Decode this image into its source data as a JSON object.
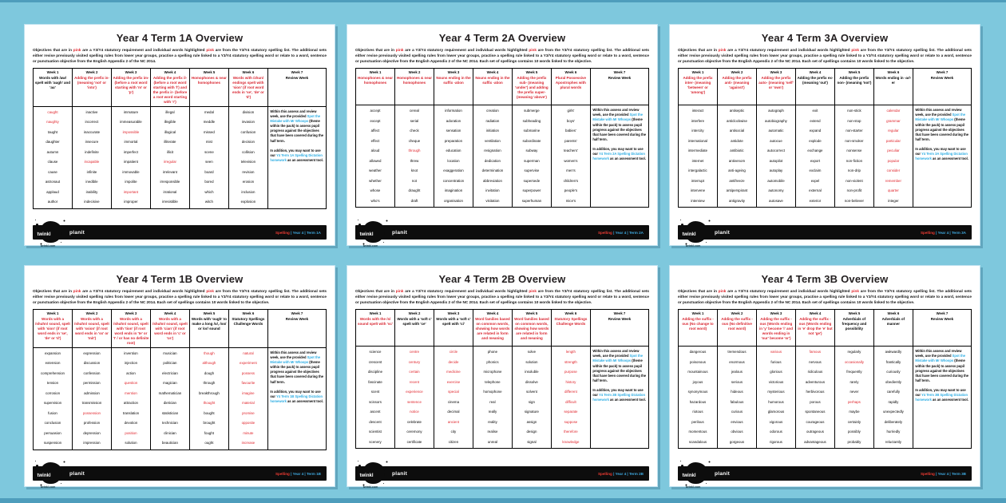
{
  "page": {
    "background": "#7ec8dd",
    "accent_red": "#d8232e",
    "link_blue": "#29abe2"
  },
  "common": {
    "intro_segments": [
      "Objectives that are in ",
      "pink",
      " are a Y3/Y4 statutory requirement and individual words highlighted ",
      "pink",
      " are from the Y3/Y4 statutory spelling list. The additional sets either revise previously visited spelling rules from lower year groups, practise a spelling rule linked to a Y3/Y4 statutory spelling word or relate to a word, sentence or punctuation objective from the English Appendix 2 of the NC 2014."
    ],
    "intro_extra": "Each set of spellings contains 10 words linked to the objective.",
    "review": {
      "p1_pre": "Within this assess and review week, use the provided ",
      "p1_link": "Spot the Mistake with Mr Whoops",
      "p1_post": " (theme within the pack) to assess pupil progress against the objectives that have been covered during the half term.",
      "p2_pre": "In addition, you may want to use our ",
      "p2_post": " as an assessment tool."
    },
    "footer_brand": "twinkl",
    "footer_site": "twinkl.com",
    "footer_product": "planit"
  },
  "cards": [
    {
      "title": "Year 4 Term 1A Overview",
      "intro_extra": false,
      "review_link": "Y4 Term 1A Spelling Dictation homework",
      "footer": {
        "subject": "Spelling",
        "rest": " | Year 4 | Term 1A"
      },
      "weeks": [
        {
          "week": "Week 1",
          "label": "Words with /aw/ spelt with 'augh' and 'au'",
          "style": "black",
          "words": [
            "*caught",
            "*naughty",
            "taught",
            "daughter",
            "autumn",
            "clause",
            "cause",
            "astronaut",
            "applaud",
            "author"
          ]
        },
        {
          "week": "Week 2",
          "label": "Adding the prefix in- (meaning 'not' or 'into')",
          "style": "red",
          "words": [
            "inactive",
            "incorrect",
            "inaccurate",
            "insecure",
            "indefinite",
            "*incapable",
            "infinite",
            "inedible",
            "inability",
            "indecisive"
          ]
        },
        {
          "week": "Week 3",
          "label": "Adding the prefix im- (before a root word starting with 'm' or 'p')",
          "style": "red",
          "words": [
            "immature",
            "immeasurable",
            "*impossible",
            "immortal",
            "imperfect",
            "impatient",
            "immovable",
            "impolite",
            "*important",
            "improper"
          ]
        },
        {
          "week": "Week 4",
          "label": "Adding the prefix il- (before a root word starting with 'l') and the prefix ir- (before a root word starting with 'r')",
          "style": "red",
          "words": [
            "illegal",
            "illegible",
            "illogical",
            "illiterate",
            "illicit",
            "*irregular",
            "irrelevant",
            "irresponsible",
            "irrational",
            "irresistible"
          ]
        },
        {
          "week": "Week 5",
          "label": "Homophones & near homophones",
          "style": "red",
          "words": [
            "medal",
            "meddle",
            "missed",
            "mist",
            "scene",
            "seen",
            "board",
            "bored",
            "which",
            "witch"
          ]
        },
        {
          "week": "Week 6",
          "label": "Words with /zhun/ endings spelt with 'sion' (if root word ends in 'se', 'de' or 'd')",
          "style": "red",
          "words": [
            "division",
            "invasion",
            "confusion",
            "decision",
            "collision",
            "television",
            "revision",
            "erosion",
            "inclusion",
            "explosion"
          ]
        },
        {
          "week": "Week 7",
          "label": "Review Week",
          "style": "black",
          "review": true
        }
      ]
    },
    {
      "title": "Year 4 Term 2A Overview",
      "intro_extra": true,
      "review_link": "Y4 Term 2A Spelling Dictation homework",
      "footer": {
        "subject": "Spelling",
        "rest": " | Year 4 | Term 2A"
      },
      "weeks": [
        {
          "week": "Week 1",
          "label": "Homophones & near homophones",
          "style": "red",
          "words": [
            "accept",
            "except",
            "affect",
            "effect",
            "aloud",
            "allowed",
            "weather",
            "whether",
            "whose",
            "who's"
          ]
        },
        {
          "week": "Week 2",
          "label": "Homophones & near homophones",
          "style": "red",
          "words": [
            "cereal",
            "serial",
            "check",
            "cheque",
            "*through",
            "threw",
            "knot",
            "not",
            "draught",
            "draft"
          ]
        },
        {
          "week": "Week 3",
          "label": "Nouns ending in the suffix -ation",
          "style": "red",
          "words": [
            "information",
            "adoration",
            "sensation",
            "preparation",
            "education",
            "location",
            "exaggeration",
            "concentration",
            "imagination",
            "organisation"
          ]
        },
        {
          "week": "Week 4",
          "label": "Nouns ending in the suffix -ation",
          "style": "red",
          "words": [
            "creation",
            "radiation",
            "initiation",
            "ventilation",
            "resignation",
            "dedication",
            "determination",
            "abbreviation",
            "invitation",
            "visitation"
          ]
        },
        {
          "week": "Week 5",
          "label": "Adding the prefix sub- (meaning 'under') and adding the prefix super- (meaning 'above')",
          "style": "red",
          "words": [
            "submerge",
            "subheading",
            "submarine",
            "subordinate",
            "subway",
            "superman",
            "supervise",
            "supersede",
            "superpower",
            "superhuman"
          ]
        },
        {
          "week": "Week 6",
          "label": "Plural Possessive Apostrophes with plural words",
          "style": "red",
          "words": [
            "girls'",
            "boys'",
            "babies'",
            "parents'",
            "teachers'",
            "women's",
            "men's",
            "children's",
            "people's",
            "mice's"
          ]
        },
        {
          "week": "Week 7",
          "label": "Review Week",
          "style": "black",
          "review": true
        }
      ]
    },
    {
      "title": "Year 4 Term 3A Overview",
      "intro_extra": true,
      "review_link": "Y4 Term 3A Spelling Dictation homework",
      "footer": {
        "subject": "Spelling",
        "rest": " | Year 4 | Term 3A"
      },
      "weeks": [
        {
          "week": "Week 1",
          "label": "Adding the prefix inter- (meaning 'between' or 'among')",
          "style": "red",
          "words": [
            "interact",
            "interfere",
            "intercity",
            "international",
            "intermediate",
            "internet",
            "intergalactic",
            "interrupt",
            "intervene",
            "interview"
          ]
        },
        {
          "week": "Week 2",
          "label": "Adding the prefix anti- (meaning 'against')",
          "style": "red",
          "words": [
            "antiseptic",
            "anticlockwise",
            "antisocial",
            "antidote",
            "antibiotic",
            "antivenom",
            "anti-ageing",
            "antifreeze",
            "antiperspirant",
            "antigravity"
          ]
        },
        {
          "week": "Week 3",
          "label": "Adding the prefix auto- (meaning 'self' or 'own')",
          "style": "red",
          "words": [
            "autograph",
            "autobiography",
            "automatic",
            "autocue",
            "autocorrect",
            "autopilot",
            "autoplay",
            "automobile",
            "autonomy",
            "autosave"
          ]
        },
        {
          "week": "Week 4",
          "label": "Adding the prefix ex- (meaning 'out')",
          "style": "black",
          "words": [
            "exit",
            "extend",
            "expand",
            "explode",
            "exchange",
            "export",
            "exclaim",
            "expel",
            "external",
            "exterior"
          ]
        },
        {
          "week": "Week 5",
          "label": "Adding the prefix non- (meaning 'not')",
          "style": "black",
          "words": [
            "non-stick",
            "non-stop",
            "non-starter",
            "non-smoker",
            "nonsense",
            "non-fiction",
            "non-drip",
            "non-violent",
            "non-profit",
            "non-believer"
          ]
        },
        {
          "week": "Week 6",
          "label": "Words ending in -ar/-er",
          "style": "black",
          "words": [
            "*calendar",
            "*grammar",
            "*regular",
            "*particular",
            "*peculiar",
            "*popular",
            "*consider",
            "*remember",
            "*quarter",
            "integer"
          ]
        },
        {
          "week": "Week 7",
          "label": "Review Week",
          "style": "black",
          "review": true
        }
      ]
    },
    {
      "title": "Year 4 Term 1B Overview",
      "intro_extra": true,
      "review_link": "Y4 Term 1B Spelling Dictation homework",
      "footer": {
        "subject": "Spelling",
        "rest": " | Year 4 | Term 1B"
      },
      "weeks": [
        {
          "week": "Week 1",
          "label": "Words with a /shuhn/ sound, spelt with 'sion' (if root word ends in 'se', 'de' or 'd')",
          "style": "red",
          "words": [
            "expansion",
            "extension",
            "comprehension",
            "tension",
            "corrosion",
            "supervision",
            "fusion",
            "conclusion",
            "persuasion",
            "suspension"
          ]
        },
        {
          "week": "Week 2",
          "label": "Words with a /shuhn/ sound, spelt with 'ssion' (if root word ends in 'ss' or 'mit')",
          "style": "red",
          "words": [
            "expression",
            "discussion",
            "confession",
            "permission",
            "admission",
            "transmission",
            "*possession",
            "profession",
            "depression",
            "impression"
          ]
        },
        {
          "week": "Week 3",
          "label": "Words with a /shuhn/ sound, spelt with 'tion' (if root word ends in 'te' or 't' / or has no definite root)",
          "style": "red",
          "words": [
            "invention",
            "injection",
            "action",
            "*question",
            "*mention",
            "attraction",
            "translation",
            "devotion",
            "*position",
            "solution"
          ]
        },
        {
          "week": "Week 4",
          "label": "Words with a /shuhn/ sound, spelt with 'cian' (if root word ends in 'c' or 'cs')",
          "style": "red",
          "words": [
            "musician",
            "politician",
            "electrician",
            "magician",
            "mathematician",
            "dietician",
            "statistician",
            "technician",
            "clinician",
            "beautician"
          ]
        },
        {
          "week": "Week 5",
          "label": "Words with 'ough' to make a long /o/, /oo/ or /or/ sound",
          "style": "black",
          "words": [
            "*though",
            "*although",
            "dough",
            "through",
            "breakthrough",
            "*thought",
            "bought",
            "brought",
            "fought",
            "ought"
          ]
        },
        {
          "week": "Week 6",
          "label": "Statutory Spellings Challenge Words",
          "style": "black",
          "words": [
            "*natural",
            "*experiment",
            "*possess",
            "*favourite",
            "*imagine",
            "*material",
            "*promise",
            "*opposite",
            "*minute",
            "*increase"
          ]
        },
        {
          "week": "Week 7",
          "label": "Review Week",
          "style": "black",
          "review": true
        }
      ]
    },
    {
      "title": "Year 4 Term 2B Overview",
      "intro_extra": true,
      "review_link": "Y4 Term 2B Spelling Dictation homework",
      "footer": {
        "subject": "Spelling",
        "rest": " | Year 4 | Term 2B"
      },
      "weeks": [
        {
          "week": "Week 1",
          "label": "Words with the /s/ sound spelt with 'sc'",
          "style": "red",
          "words": [
            "science",
            "crescent",
            "discipline",
            "fascinate",
            "scent",
            "scissors",
            "ascent",
            "descent",
            "scientist",
            "scenery"
          ]
        },
        {
          "week": "Week 2",
          "label": "Words with a 'soft c' spelt with 'ce'",
          "style": "black",
          "words": [
            "*centre",
            "*century",
            "*certain",
            "*recent",
            "*experience",
            "*sentence",
            "*notice",
            "celebrate",
            "ceremony",
            "certificate"
          ]
        },
        {
          "week": "Week 3",
          "label": "Words with a 'soft c' spelt with 'ci'",
          "style": "black",
          "words": [
            "*circle",
            "*decide",
            "*medicine",
            "*exercise",
            "*special",
            "cinema",
            "decimal",
            "*ancient",
            "city",
            "citizen"
          ]
        },
        {
          "week": "Week 4",
          "label": "Word families based on common words, showing how words are related in form and meaning",
          "style": "red",
          "words": [
            "phone",
            "phonics",
            "microphone",
            "telephone",
            "homophone",
            "real",
            "really",
            "reality",
            "realise",
            "unreal"
          ]
        },
        {
          "week": "Week 5",
          "label": "Word families based on common words, showing how words are related in form and meaning",
          "style": "red",
          "words": [
            "solve",
            "solution",
            "insoluble",
            "dissolve",
            "solvent",
            "sign",
            "signature",
            "assign",
            "design",
            "signal"
          ]
        },
        {
          "week": "Week 6",
          "label": "Statutory Spellings Challenge Words",
          "style": "red",
          "words": [
            "*length",
            "*strength",
            "*purpose",
            "*history",
            "*different",
            "*difficult",
            "*separate",
            "*suppose",
            "*therefore",
            "*knowledge"
          ]
        },
        {
          "week": "Week 7",
          "label": "Review Week",
          "style": "black",
          "review": true
        }
      ]
    },
    {
      "title": "Year 4 Term 3B Overview",
      "intro_extra": true,
      "review_link": "Y4 Term 3B Spelling Dictation homework",
      "footer": {
        "subject": "Spelling",
        "rest": " | Year 4 | Term 3B"
      },
      "weeks": [
        {
          "week": "Week 1",
          "label": "Adding the suffix -ous (No change to root word)",
          "style": "red",
          "words": [
            "dangerous",
            "poisonous",
            "mountainous",
            "joyous",
            "synonymous",
            "hazardous",
            "riotous",
            "perilous",
            "momentous",
            "scandalous"
          ]
        },
        {
          "week": "Week 2",
          "label": "Adding the suffix -ous (No definitive root word)",
          "style": "red",
          "words": [
            "tremendous",
            "enormous",
            "jealous",
            "serious",
            "hideous",
            "fabulous",
            "curious",
            "envious",
            "obvious",
            "gorgeous"
          ]
        },
        {
          "week": "Week 3",
          "label": "Adding the suffix -ous (Words ending in 'y' become 'i' and words ending in 'our' become 'or')",
          "style": "red",
          "words": [
            "*various",
            "furious",
            "glorious",
            "victorious",
            "mysterious",
            "humorous",
            "glamorous",
            "vigorous",
            "odorous",
            "rigorous"
          ]
        },
        {
          "week": "Week 4",
          "label": "Adding the suffix -ous (Words ending in 'e' drop the 'e' but not 'ge')",
          "style": "red",
          "words": [
            "*famous",
            "nervous",
            "ridiculous",
            "adventurous",
            "herbivorous",
            "porous",
            "spontaneous",
            "courageous",
            "outrageous",
            "advantageous"
          ]
        },
        {
          "week": "Week 5",
          "label": "Adverbials of frequency and possibility",
          "style": "black",
          "words": [
            "regularly",
            "*occasionally",
            "frequently",
            "rarely",
            "never",
            "*perhaps",
            "maybe",
            "certainly",
            "possibly",
            "probably"
          ]
        },
        {
          "week": "Week 6",
          "label": "Adverbials of manner",
          "style": "black",
          "words": [
            "awkwardly",
            "frantically",
            "curiously",
            "obediently",
            "carefully",
            "rapidly",
            "unexpectedly",
            "deliberately",
            "hurriedly",
            "reluctantly"
          ]
        },
        {
          "week": "Week 7",
          "label": "Review Week",
          "style": "black",
          "review": true
        }
      ]
    }
  ]
}
